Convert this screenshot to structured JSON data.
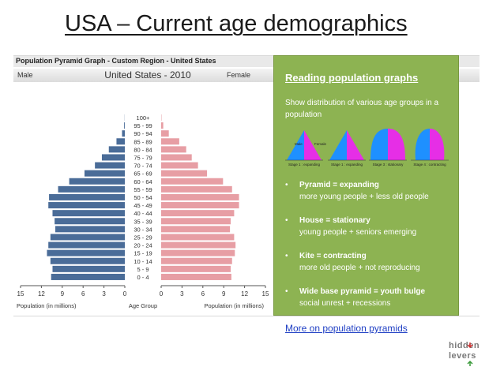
{
  "slide": {
    "title": "USA – Current age demographics",
    "link_text": "More on population pyramids",
    "logo_line1": "hidden",
    "logo_line2": "levers"
  },
  "panel": {
    "header": "Population Pyramid Graph - Custom Region - United States",
    "left_label": "Male",
    "center_title": "United States - 2010",
    "right_label": "Female"
  },
  "chart_data": {
    "type": "bar",
    "orientation": "horizontal",
    "title": "United States - 2010",
    "categories": [
      "0 - 4",
      "5 - 9",
      "10 - 14",
      "15 - 19",
      "20 - 24",
      "25 - 29",
      "30 - 34",
      "35 - 39",
      "40 - 44",
      "45 - 49",
      "50 - 54",
      "55 - 59",
      "60 - 64",
      "65 - 69",
      "70 - 74",
      "75 - 79",
      "80 - 84",
      "85 - 89",
      "90 - 94",
      "95 - 99",
      "100+"
    ],
    "series": [
      {
        "name": "Male",
        "values": [
          10.6,
          10.4,
          10.7,
          11.2,
          11.0,
          10.7,
          10.0,
          10.1,
          10.4,
          11.0,
          10.9,
          9.6,
          8.0,
          5.8,
          4.3,
          3.3,
          2.3,
          1.2,
          0.4,
          0.1,
          0.02
        ]
      },
      {
        "name": "Female",
        "values": [
          10.1,
          10.0,
          10.2,
          10.6,
          10.7,
          10.5,
          9.9,
          10.0,
          10.5,
          11.2,
          11.2,
          10.2,
          8.9,
          6.6,
          5.3,
          4.4,
          3.6,
          2.6,
          1.1,
          0.3,
          0.05
        ]
      }
    ],
    "xlim": [
      0,
      15
    ],
    "left_ticks": [
      "15",
      "12",
      "9",
      "6",
      "3",
      "0"
    ],
    "right_ticks": [
      "0",
      "3",
      "6",
      "9",
      "12",
      "15"
    ],
    "xlabel_left": "Population (in millions)",
    "xlabel_center": "Age Group",
    "xlabel_right": "Population (in millions)",
    "colors": {
      "male_bar": "#4a6c98",
      "female_bar": "#e79ea4"
    }
  },
  "reading": {
    "heading": "Reading population graphs",
    "description": "Show distribution of various age groups in a population",
    "stages": [
      {
        "shape": "pyramid",
        "label": "Stage 1 : expanding"
      },
      {
        "shape": "pyramid",
        "label": "Stage 1 : expanding"
      },
      {
        "shape": "house",
        "label": "Stage 3 : stationary"
      },
      {
        "shape": "kite",
        "label": "Stage 4 : contracting"
      }
    ],
    "stage_male_label": "Male",
    "stage_female_label": "Female",
    "bullets": [
      {
        "marker": "•",
        "title": "Pyramid = expanding",
        "desc": "more young people + less old people"
      },
      {
        "marker": "•",
        "title": "House  = stationary",
        "desc": "young people + seniors emerging"
      },
      {
        "marker": "•",
        "title": "Kite  = contracting",
        "desc": "more old people + not reproducing"
      },
      {
        "marker": "•",
        "title": "Wide base pyramid = youth bulge",
        "desc": "social unrest + recessions"
      }
    ]
  }
}
